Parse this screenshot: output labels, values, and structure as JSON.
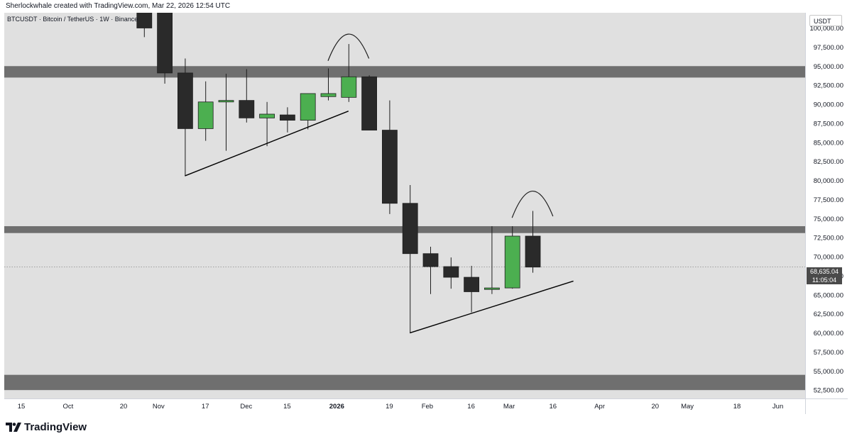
{
  "header": {
    "attribution": "Sherlockwhale created with TradingView.com, Mar 22, 2026 12:54 UTC"
  },
  "symbol": {
    "description": "BTCUSDT · Bitcoin / TetherUS · 1W · Binance"
  },
  "price_axis": {
    "currency": "USDT"
  },
  "last_price": {
    "value": "68,635.04",
    "countdown": "11:05:04"
  },
  "footer": {
    "logo_text": "TradingView",
    "logo_icon": "tradingview-logo-icon"
  },
  "colors": {
    "background": "#e0e0e0",
    "bull": "#4caf50",
    "bear": "#2a2a2a",
    "zone": "#6f6f6f",
    "line": "#000000"
  },
  "chart_data": {
    "type": "candlestick",
    "timeframe": "1W",
    "ylim": [
      51400,
      102000
    ],
    "y_ticks": [
      52500,
      55000,
      57500,
      60000,
      62500,
      65000,
      67500,
      70000,
      72500,
      75000,
      77500,
      80000,
      82500,
      85000,
      87500,
      90000,
      92500,
      95000,
      97500,
      100000
    ],
    "y_tick_labels": [
      "52,500.00",
      "55,000.00",
      "57,500.00",
      "60,000.00",
      "62,500.00",
      "65,000.00",
      "67,500.00",
      "70,000.00",
      "72,500.00",
      "75,000.00",
      "77,500.00",
      "80,000.00",
      "82,500.00",
      "85,000.00",
      "87,500.00",
      "90,000.00",
      "92,500.00",
      "95,000.00",
      "97,500.00",
      "100,000.00"
    ],
    "x_tick_labels": [
      {
        "label": "15",
        "date": "2025-09-15"
      },
      {
        "label": "Oct",
        "date": "2025-10-01"
      },
      {
        "label": "20",
        "date": "2025-10-20"
      },
      {
        "label": "Nov",
        "date": "2025-11-01"
      },
      {
        "label": "17",
        "date": "2025-11-17"
      },
      {
        "label": "Dec",
        "date": "2025-12-01"
      },
      {
        "label": "15",
        "date": "2025-12-15"
      },
      {
        "label": "2026",
        "date": "2026-01-01"
      },
      {
        "label": "19",
        "date": "2026-01-19"
      },
      {
        "label": "Feb",
        "date": "2026-02-01"
      },
      {
        "label": "16",
        "date": "2026-02-16"
      },
      {
        "label": "Mar",
        "date": "2026-03-01"
      },
      {
        "label": "16",
        "date": "2026-03-16"
      },
      {
        "label": "Apr",
        "date": "2026-04-01"
      },
      {
        "label": "20",
        "date": "2026-04-20"
      },
      {
        "label": "May",
        "date": "2026-05-01"
      },
      {
        "label": "18",
        "date": "2026-05-18"
      },
      {
        "label": "Jun",
        "date": "2026-06-01"
      }
    ],
    "candles": [
      {
        "date": "2025-10-27",
        "open": 114500,
        "high": 116000,
        "low": 98800,
        "close": 100000
      },
      {
        "date": "2025-11-03",
        "open": 103500,
        "high": 118000,
        "low": 92700,
        "close": 94100
      },
      {
        "date": "2025-11-10",
        "open": 94100,
        "high": 96000,
        "low": 80600,
        "close": 86800
      },
      {
        "date": "2025-11-17",
        "open": 86800,
        "high": 93000,
        "low": 85200,
        "close": 90300
      },
      {
        "date": "2025-11-24",
        "open": 90300,
        "high": 94000,
        "low": 83900,
        "close": 90500
      },
      {
        "date": "2025-12-01",
        "open": 90500,
        "high": 94600,
        "low": 87600,
        "close": 88200
      },
      {
        "date": "2025-12-08",
        "open": 88200,
        "high": 90300,
        "low": 84500,
        "close": 88700
      },
      {
        "date": "2025-12-15",
        "open": 88600,
        "high": 89600,
        "low": 86300,
        "close": 87900
      },
      {
        "date": "2025-12-22",
        "open": 87900,
        "high": 91400,
        "low": 86700,
        "close": 91400
      },
      {
        "date": "2025-12-29",
        "open": 91000,
        "high": 94700,
        "low": 90500,
        "close": 91400
      },
      {
        "date": "2026-01-05",
        "open": 90900,
        "high": 97900,
        "low": 90300,
        "close": 93600
      },
      {
        "date": "2026-01-12",
        "open": 93600,
        "high": 93800,
        "low": 86600,
        "close": 86600
      },
      {
        "date": "2026-01-19",
        "open": 86600,
        "high": 90500,
        "low": 75600,
        "close": 77000
      },
      {
        "date": "2026-01-26",
        "open": 77000,
        "high": 79400,
        "low": 60000,
        "close": 70400
      },
      {
        "date": "2026-02-02",
        "open": 70400,
        "high": 71300,
        "low": 65100,
        "close": 68700
      },
      {
        "date": "2026-02-09",
        "open": 68700,
        "high": 69900,
        "low": 65800,
        "close": 67300
      },
      {
        "date": "2026-02-16",
        "open": 67300,
        "high": 68800,
        "low": 62700,
        "close": 65400
      },
      {
        "date": "2026-02-23",
        "open": 65700,
        "high": 74000,
        "low": 65100,
        "close": 65900
      },
      {
        "date": "2026-03-02",
        "open": 65900,
        "high": 74000,
        "low": 65800,
        "close": 72700
      },
      {
        "date": "2026-03-09",
        "open": 72700,
        "high": 76000,
        "low": 67900,
        "close": 68635.04
      }
    ],
    "zones": [
      {
        "from": 93500,
        "to": 95000
      },
      {
        "from": 73100,
        "to": 74000
      },
      {
        "from": 52500,
        "to": 54500
      }
    ],
    "trendlines": [
      {
        "from": {
          "date": "2025-11-10",
          "price": 80600
        },
        "to": {
          "date": "2026-01-05",
          "price": 89100
        }
      },
      {
        "from": {
          "date": "2026-01-26",
          "price": 60000
        },
        "to": {
          "date": "2026-03-23",
          "price": 66800
        }
      }
    ],
    "arcs": [
      {
        "from": {
          "date": "2025-12-29",
          "price": 95700
        },
        "peak": {
          "date": "2026-01-05",
          "price": 99200
        },
        "to": {
          "date": "2026-01-12",
          "price": 96000
        }
      },
      {
        "from": {
          "date": "2026-03-02",
          "price": 75100
        },
        "peak": {
          "date": "2026-03-09",
          "price": 78600
        },
        "to": {
          "date": "2026-03-16",
          "price": 75300
        }
      }
    ],
    "grid": false,
    "legend": "none"
  }
}
